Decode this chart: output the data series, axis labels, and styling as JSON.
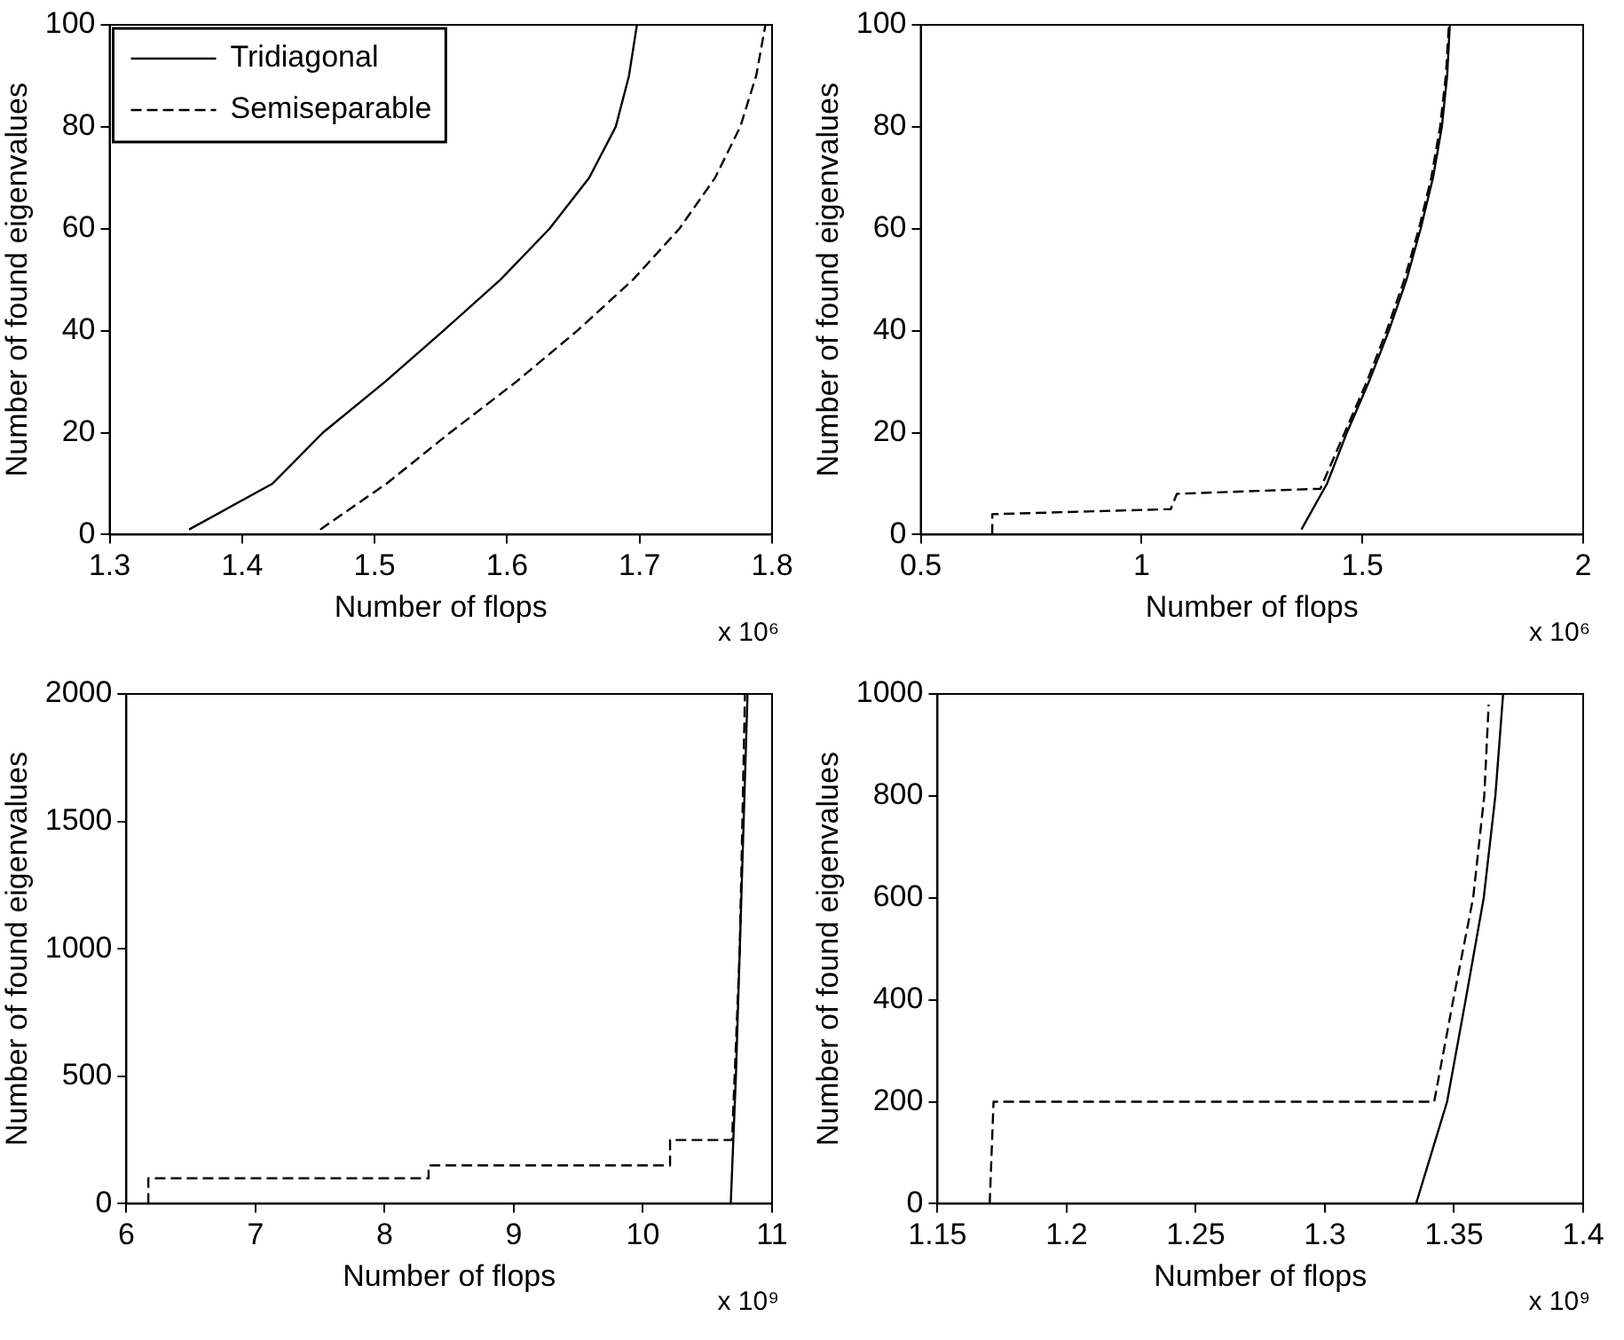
{
  "chart_data": [
    {
      "type": "line",
      "xlabel": "Number of flops",
      "ylabel": "Number of found eigenvalues",
      "annotations": [
        "x 10⁶"
      ],
      "xlim": [
        1.3,
        1.8
      ],
      "xticks": [
        1.3,
        1.4,
        1.5,
        1.6,
        1.7,
        1.8
      ],
      "ylim": [
        0,
        100
      ],
      "yticks": [
        0,
        20,
        40,
        60,
        80,
        100
      ],
      "grid": false,
      "legend": "top left",
      "series": [
        {
          "name": "Tridiagonal",
          "color": "#000000",
          "line_style": "solid",
          "x": [
            1.36,
            1.423,
            1.461,
            1.508,
            1.552,
            1.595,
            1.632,
            1.662,
            1.682,
            1.692,
            1.698
          ],
          "values": [
            1,
            10,
            20,
            30,
            40,
            50,
            60,
            70,
            80,
            90,
            100
          ]
        },
        {
          "name": "Semiseparable",
          "color": "#000000",
          "line_style": "dashed",
          "x": [
            1.459,
            1.509,
            1.557,
            1.607,
            1.653,
            1.695,
            1.73,
            1.757,
            1.776,
            1.788,
            1.795
          ],
          "values": [
            1,
            10,
            20,
            30,
            40,
            50,
            60,
            70,
            80,
            90,
            100
          ]
        }
      ]
    },
    {
      "type": "line",
      "xlabel": "Number of flops",
      "ylabel": "Number of found eigenvalues",
      "annotations": [
        "x 10⁶"
      ],
      "xlim": [
        0.5,
        2
      ],
      "xticks": [
        0.5,
        1,
        1.5,
        2
      ],
      "ylim": [
        0,
        100
      ],
      "yticks": [
        0,
        20,
        40,
        60,
        80,
        100
      ],
      "grid": false,
      "legend": false,
      "series": [
        {
          "color": "#000000",
          "line_style": "solid",
          "x": [
            1.362,
            1.42,
            1.465,
            1.515,
            1.56,
            1.6,
            1.632,
            1.66,
            1.68,
            1.692,
            1.698
          ],
          "values": [
            1,
            10,
            20,
            30,
            40,
            50,
            60,
            70,
            80,
            90,
            100
          ]
        },
        {
          "color": "#000000",
          "line_style": "dashed",
          "x": [
            0.662,
            0.662,
            1.066,
            1.08,
            1.405,
            1.46,
            1.51,
            1.555,
            1.595,
            1.628,
            1.656,
            1.676,
            1.689,
            1.696
          ],
          "values": [
            0,
            4,
            5,
            8,
            9,
            20,
            30,
            40,
            50,
            60,
            70,
            80,
            90,
            100
          ]
        }
      ]
    },
    {
      "type": "line",
      "xlabel": "Number of flops",
      "ylabel": "Number of found eigenvalues",
      "annotations": [
        "x 10⁹"
      ],
      "xlim": [
        6,
        11
      ],
      "xticks": [
        6,
        7,
        8,
        9,
        10,
        11
      ],
      "ylim": [
        0,
        2000
      ],
      "yticks": [
        0,
        500,
        1000,
        1500,
        2000
      ],
      "grid": false,
      "legend": false,
      "series": [
        {
          "color": "#000000",
          "line_style": "solid",
          "x": [
            10.68,
            10.72,
            10.75,
            10.78,
            10.81
          ],
          "values": [
            0,
            500,
            1000,
            1500,
            2000
          ]
        },
        {
          "color": "#000000",
          "line_style": "dashed",
          "x": [
            6.17,
            6.17,
            8.34,
            8.34,
            10.21,
            10.21,
            10.69,
            10.75,
            10.79
          ],
          "values": [
            0,
            100,
            100,
            150,
            150,
            250,
            250,
            1000,
            2000
          ]
        }
      ]
    },
    {
      "type": "line",
      "xlabel": "Number of flops",
      "ylabel": "Number of found eigenvalues",
      "annotations": [
        "x 10⁹"
      ],
      "xlim": [
        1.15,
        1.4
      ],
      "xticks": [
        1.15,
        1.2,
        1.25,
        1.3,
        1.35,
        1.4
      ],
      "ylim": [
        0,
        1000
      ],
      "yticks": [
        0,
        200,
        400,
        600,
        800,
        1000
      ],
      "grid": false,
      "legend": false,
      "series": [
        {
          "color": "#000000",
          "line_style": "solid",
          "x": [
            1.3353,
            1.3473,
            1.3545,
            1.3615,
            1.366,
            1.369
          ],
          "values": [
            0,
            200,
            400,
            600,
            800,
            1000
          ]
        },
        {
          "color": "#000000",
          "line_style": "dashed",
          "x": [
            1.1702,
            1.1717,
            1.3423,
            1.3497,
            1.3574,
            1.3617,
            1.3634
          ],
          "values": [
            0,
            200,
            200,
            400,
            600,
            800,
            979
          ]
        }
      ]
    }
  ]
}
